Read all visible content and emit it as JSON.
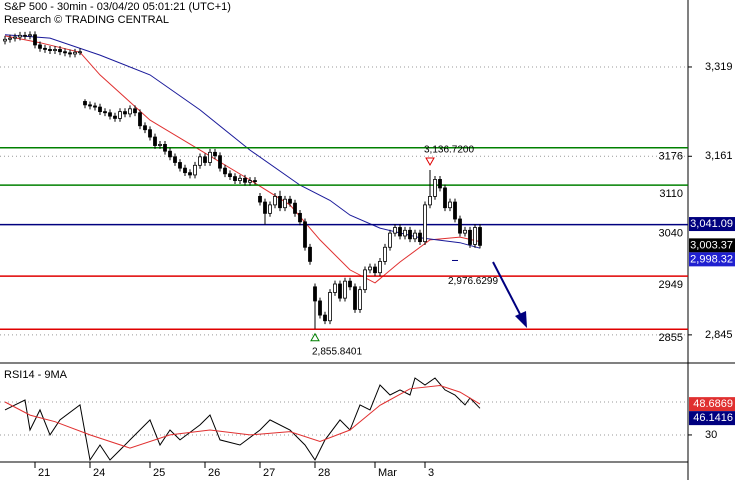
{
  "header": {
    "title": "S&P 500 - 30min - 03/04/20 05:01:21 (UTC+1)",
    "subtitle": "Research © TRADING CENTRAL"
  },
  "chart_data": [
    {
      "type": "candlestick",
      "xlim": [
        -1,
        136.6
      ],
      "ylim": [
        2797,
        3437.5
      ],
      "yticks": [
        {
          "value": 3319,
          "label": "3,319"
        },
        {
          "value": 3161,
          "label": "3,161"
        },
        {
          "value": 2845,
          "label": "2,845"
        }
      ],
      "grid": true,
      "up_color": "#ffffff",
      "down_color": "#000000",
      "edge_color": "#000000",
      "candles": [
        [
          3365,
          3374,
          3359,
          3368
        ],
        [
          3368,
          3376,
          3362,
          3370
        ],
        [
          3370,
          3378,
          3364,
          3372
        ],
        [
          3372,
          3381,
          3366,
          3375
        ],
        [
          3375,
          3381,
          3368,
          3374
        ],
        [
          3374,
          3382,
          3368,
          3376
        ],
        [
          3376,
          3382,
          3352,
          3358
        ],
        [
          3358,
          3364,
          3346,
          3352
        ],
        [
          3352,
          3358,
          3344,
          3350
        ],
        [
          3350,
          3356,
          3342,
          3348
        ],
        [
          3348,
          3356,
          3342,
          3350
        ],
        [
          3350,
          3356,
          3340,
          3346
        ],
        [
          3346,
          3352,
          3338,
          3344
        ],
        [
          3344,
          3350,
          3336,
          3342
        ],
        [
          3342,
          3351,
          3336,
          3345
        ],
        [
          3345,
          3352,
          3340,
          3346
        ],
        [
          3258,
          3262,
          3246,
          3252
        ],
        [
          3252,
          3258,
          3244,
          3250
        ],
        [
          3250,
          3256,
          3242,
          3248
        ],
        [
          3248,
          3254,
          3234,
          3240
        ],
        [
          3240,
          3246,
          3232,
          3238
        ],
        [
          3238,
          3244,
          3226,
          3232
        ],
        [
          3232,
          3238,
          3222,
          3228
        ],
        [
          3228,
          3246,
          3222,
          3240
        ],
        [
          3240,
          3246,
          3230,
          3236
        ],
        [
          3236,
          3251,
          3230,
          3245
        ],
        [
          3245,
          3251,
          3232,
          3238
        ],
        [
          3238,
          3244,
          3209,
          3215
        ],
        [
          3215,
          3221,
          3202,
          3208
        ],
        [
          3208,
          3214,
          3189,
          3195
        ],
        [
          3195,
          3201,
          3174,
          3180
        ],
        [
          3180,
          3188,
          3174,
          3182
        ],
        [
          3182,
          3188,
          3164,
          3170
        ],
        [
          3170,
          3176,
          3154,
          3160
        ],
        [
          3160,
          3166,
          3144,
          3150
        ],
        [
          3150,
          3156,
          3134,
          3140
        ],
        [
          3140,
          3146,
          3126,
          3132
        ],
        [
          3132,
          3138,
          3122,
          3128
        ],
        [
          3128,
          3151,
          3122,
          3145
        ],
        [
          3145,
          3166,
          3139,
          3160
        ],
        [
          3160,
          3166,
          3144,
          3150
        ],
        [
          3150,
          3174,
          3144,
          3168
        ],
        [
          3168,
          3174,
          3156,
          3162
        ],
        [
          3162,
          3168,
          3134,
          3140
        ],
        [
          3140,
          3146,
          3124,
          3130
        ],
        [
          3130,
          3136,
          3119,
          3125
        ],
        [
          3125,
          3131,
          3112,
          3118
        ],
        [
          3118,
          3128,
          3112,
          3122
        ],
        [
          3122,
          3128,
          3109,
          3115
        ],
        [
          3115,
          3124,
          3109,
          3118
        ],
        [
          3118,
          3124,
          3111,
          3117
        ],
        [
          3090,
          3096,
          3074,
          3080
        ],
        [
          3080,
          3086,
          3040,
          3060
        ],
        [
          3060,
          3081,
          3054,
          3075
        ],
        [
          3075,
          3096,
          3069,
          3090
        ],
        [
          3090,
          3100,
          3064,
          3070
        ],
        [
          3070,
          3091,
          3064,
          3085
        ],
        [
          3085,
          3091,
          3072,
          3078
        ],
        [
          3078,
          3084,
          3054,
          3060
        ],
        [
          3060,
          3066,
          3039,
          3045
        ],
        [
          3045,
          3051,
          2994,
          3000
        ],
        [
          3000,
          3006,
          2969,
          2975
        ],
        [
          2930,
          2936,
          2855.84,
          2905
        ],
        [
          2905,
          2911,
          2874,
          2880
        ],
        [
          2880,
          2886,
          2864,
          2870
        ],
        [
          2870,
          2926,
          2864,
          2920
        ],
        [
          2920,
          2941,
          2914,
          2935
        ],
        [
          2935,
          2941,
          2904,
          2910
        ],
        [
          2910,
          2946,
          2904,
          2940
        ],
        [
          2940,
          2946,
          2924,
          2930
        ],
        [
          2930,
          2936,
          2884,
          2890
        ],
        [
          2890,
          2931,
          2884,
          2925
        ],
        [
          2925,
          2966,
          2919,
          2960
        ],
        [
          2960,
          2971,
          2954,
          2965
        ],
        [
          2965,
          2971,
          2949,
          2955
        ],
        [
          2955,
          2981,
          2949,
          2975
        ],
        [
          2975,
          3006,
          2969,
          3000
        ],
        [
          3000,
          3031,
          2994,
          3025
        ],
        [
          3025,
          3041,
          3019,
          3035
        ],
        [
          3035,
          3041,
          3014,
          3020
        ],
        [
          3020,
          3036,
          3014,
          3030
        ],
        [
          3030,
          3036,
          3009,
          3015
        ],
        [
          3015,
          3031,
          3009,
          3025
        ],
        [
          3025,
          3031,
          3004,
          3010
        ],
        [
          3010,
          3081,
          3004,
          3075
        ],
        [
          3075,
          3136.72,
          3069,
          3090
        ],
        [
          3090,
          3126,
          3084,
          3120
        ],
        [
          3120,
          3126,
          3099,
          3105
        ],
        [
          3105,
          3111,
          3064,
          3070
        ],
        [
          3070,
          3086,
          3064,
          3080
        ],
        [
          3080,
          3086,
          3044,
          3050
        ],
        [
          3050,
          3056,
          3019,
          3025
        ],
        [
          3025,
          3036,
          3019,
          3030
        ],
        [
          3030,
          3036,
          2999,
          3005
        ],
        [
          3005,
          3041,
          2999,
          3035
        ],
        [
          3035,
          3041,
          2998,
          3003.37
        ]
      ],
      "series": [
        {
          "color": "#e03030",
          "x": [
            0,
            7,
            15,
            19,
            29,
            39,
            49,
            57,
            63,
            69,
            74,
            79,
            85,
            91,
            95
          ],
          "values": [
            3374,
            3362,
            3345,
            3305,
            3225,
            3172,
            3119,
            3075,
            3013,
            2960,
            2937,
            2974,
            3013,
            3018,
            3010
          ]
        },
        {
          "color": "#1a1a9a",
          "x": [
            0,
            9,
            19,
            29,
            39,
            49,
            59,
            65,
            69,
            75,
            83,
            91,
            95
          ],
          "values": [
            3376,
            3370,
            3340,
            3305,
            3243,
            3172,
            3110,
            3083,
            3057,
            3034,
            3017,
            3008,
            2998.32
          ]
        }
      ],
      "levels": [
        {
          "value": 3176,
          "color": "#008000"
        },
        {
          "value": 3110,
          "color": "#008000"
        },
        {
          "value": 3040,
          "color": "#00007f"
        },
        {
          "value": 2949,
          "color": "#e00000"
        },
        {
          "value": 2855,
          "color": "#e00000"
        }
      ],
      "axis_labels": [
        {
          "value": 3041.09,
          "label": "3,041.09",
          "color": "#00007f"
        },
        {
          "value": 3003.37,
          "label": "3,003.37",
          "color": "#000000"
        },
        {
          "value": 2998.32,
          "label": "2,998.32",
          "color": "#2020d0"
        }
      ],
      "annotations": [
        {
          "value": 3136.72,
          "label": "3,136.7200",
          "index": 85,
          "kind": "high"
        },
        {
          "value": 2855.8401,
          "label": "2,855.8401",
          "index": 62,
          "kind": "low"
        },
        {
          "value": 2976.6299,
          "label": "2,976.6299",
          "index": 90,
          "kind": "target"
        }
      ]
    },
    {
      "type": "line",
      "title": "RSI14 - 9MA",
      "xlim": [
        -1,
        136.6
      ],
      "ylim": [
        13.6,
        72.4
      ],
      "yticks": [
        30
      ],
      "levels": [
        50
      ],
      "grid": true,
      "xticks": [
        {
          "value": 6,
          "label": "21"
        },
        {
          "value": 17,
          "label": "24"
        },
        {
          "value": 29,
          "label": "25"
        },
        {
          "value": 40,
          "label": "26"
        },
        {
          "value": 51,
          "label": "27"
        },
        {
          "value": 62,
          "label": "28"
        },
        {
          "value": 74,
          "label": "Mar"
        },
        {
          "value": 84,
          "label": "3"
        }
      ],
      "series": [
        {
          "color": "#000000",
          "x": [
            0,
            2,
            4,
            5,
            7,
            9,
            11,
            15,
            17,
            19,
            21,
            23,
            25,
            29,
            31,
            33,
            35,
            39,
            41,
            43,
            47,
            51,
            53,
            57,
            60,
            62,
            64,
            67,
            69,
            71,
            73,
            75,
            77,
            79,
            81,
            82,
            84,
            86,
            88,
            90,
            92,
            93,
            95
          ],
          "values": [
            45.2,
            48.2,
            51.2,
            33.0,
            45.2,
            30.0,
            39.1,
            48.2,
            14.8,
            23.9,
            14.8,
            20.9,
            27.0,
            39.1,
            23.9,
            33.0,
            27.0,
            36.1,
            42.1,
            27.0,
            23.9,
            33.0,
            39.1,
            33.0,
            23.9,
            14.8,
            27.0,
            39.1,
            33.0,
            48.2,
            45.2,
            60.3,
            54.2,
            57.3,
            54.2,
            64.5,
            60.3,
            64.5,
            57.3,
            54.2,
            48.2,
            52.4,
            46.1416
          ]
        },
        {
          "color": "#e03030",
          "x": [
            0,
            5,
            10,
            17,
            25,
            33,
            41,
            49,
            57,
            63,
            69,
            75,
            81,
            87,
            91,
            95
          ],
          "values": [
            50,
            42,
            38,
            30,
            22,
            30,
            33,
            30,
            32,
            26,
            33,
            48,
            58,
            60,
            56,
            48.6869
          ]
        }
      ],
      "axis_labels": [
        {
          "value": 48.6869,
          "label": "48.6869",
          "color": "#e03030"
        },
        {
          "value": 46.1416,
          "label": "46.1416",
          "color": "#00007f"
        }
      ]
    }
  ]
}
